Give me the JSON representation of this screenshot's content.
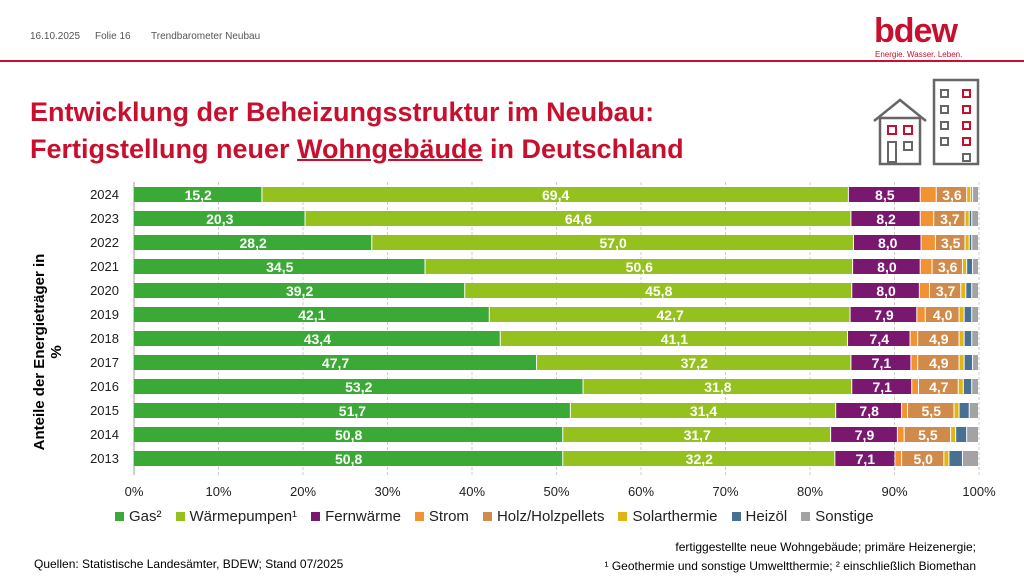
{
  "header": {
    "date": "16.10.2025",
    "slide": "Folie 16",
    "section": "Trendbarometer Neubau",
    "logo": "bdew",
    "tagline": "Energie. Wasser. Leben."
  },
  "title": {
    "line1": "Entwicklung der Beheizungsstruktur im Neubau:",
    "line2_pre": "Fertigstellung neuer ",
    "line2_u": "Wohngebäude",
    "line2_post": " in Deutschland"
  },
  "footer": {
    "source": "Quellen:  Statistische Landesämter, BDEW; Stand 07/2025",
    "note1": "fertiggestellte neue Wohngebäude; primäre Heizenergie;",
    "note2": "¹ Geothermie und sonstige Umweltthermie; ² einschließlich Biomethan"
  },
  "chart_data": {
    "type": "stacked-bar-horizontal",
    "ylabel": "Anteile der Energieträger in %",
    "xlim": [
      0,
      100
    ],
    "xticks": [
      "0%",
      "10%",
      "20%",
      "30%",
      "40%",
      "50%",
      "60%",
      "70%",
      "80%",
      "90%",
      "100%"
    ],
    "categories": [
      "2024",
      "2023",
      "2022",
      "2021",
      "2020",
      "2019",
      "2018",
      "2017",
      "2016",
      "2015",
      "2014",
      "2013"
    ],
    "legend_position": "bottom",
    "series": [
      {
        "name": "Gas²",
        "color": "#3aa935",
        "labeled": true,
        "values": [
          15.2,
          20.3,
          28.2,
          34.5,
          39.2,
          42.1,
          43.4,
          47.7,
          53.2,
          51.7,
          50.8,
          50.8
        ]
      },
      {
        "name": "Wärmepumpen¹",
        "color": "#95c11f",
        "labeled": true,
        "values": [
          69.4,
          64.6,
          57.0,
          50.6,
          45.8,
          42.7,
          41.1,
          37.2,
          31.8,
          31.4,
          31.7,
          32.2
        ]
      },
      {
        "name": "Fernwärme",
        "color": "#7a1870",
        "labeled": true,
        "values": [
          8.5,
          8.2,
          8.0,
          8.0,
          8.0,
          7.9,
          7.4,
          7.1,
          7.1,
          7.8,
          7.9,
          7.1
        ]
      },
      {
        "name": "Strom",
        "color": "#f39231",
        "labeled": false,
        "values": [
          1.9,
          1.6,
          1.7,
          1.4,
          1.2,
          1.0,
          0.9,
          0.8,
          0.8,
          0.7,
          0.8,
          0.8
        ]
      },
      {
        "name": "Holz/Holzpellets",
        "color": "#d08b4b",
        "labeled": true,
        "values": [
          3.6,
          3.7,
          3.5,
          3.6,
          3.7,
          4.0,
          4.9,
          4.9,
          4.7,
          5.5,
          5.5,
          5.0
        ]
      },
      {
        "name": "Solarthermie",
        "color": "#e1b614",
        "labeled": false,
        "values": [
          0.5,
          0.5,
          0.5,
          0.5,
          0.6,
          0.6,
          0.6,
          0.6,
          0.6,
          0.6,
          0.6,
          0.6
        ]
      },
      {
        "name": "Heizöl",
        "color": "#477092",
        "labeled": false,
        "values": [
          0.2,
          0.3,
          0.3,
          0.7,
          0.7,
          0.9,
          0.9,
          1.0,
          1.0,
          1.2,
          1.3,
          1.6
        ]
      },
      {
        "name": "Sonstige",
        "color": "#a3a3a3",
        "labeled": false,
        "values": [
          0.7,
          0.8,
          0.8,
          0.7,
          0.8,
          0.8,
          0.8,
          0.7,
          0.8,
          1.1,
          1.4,
          1.9
        ]
      }
    ]
  }
}
